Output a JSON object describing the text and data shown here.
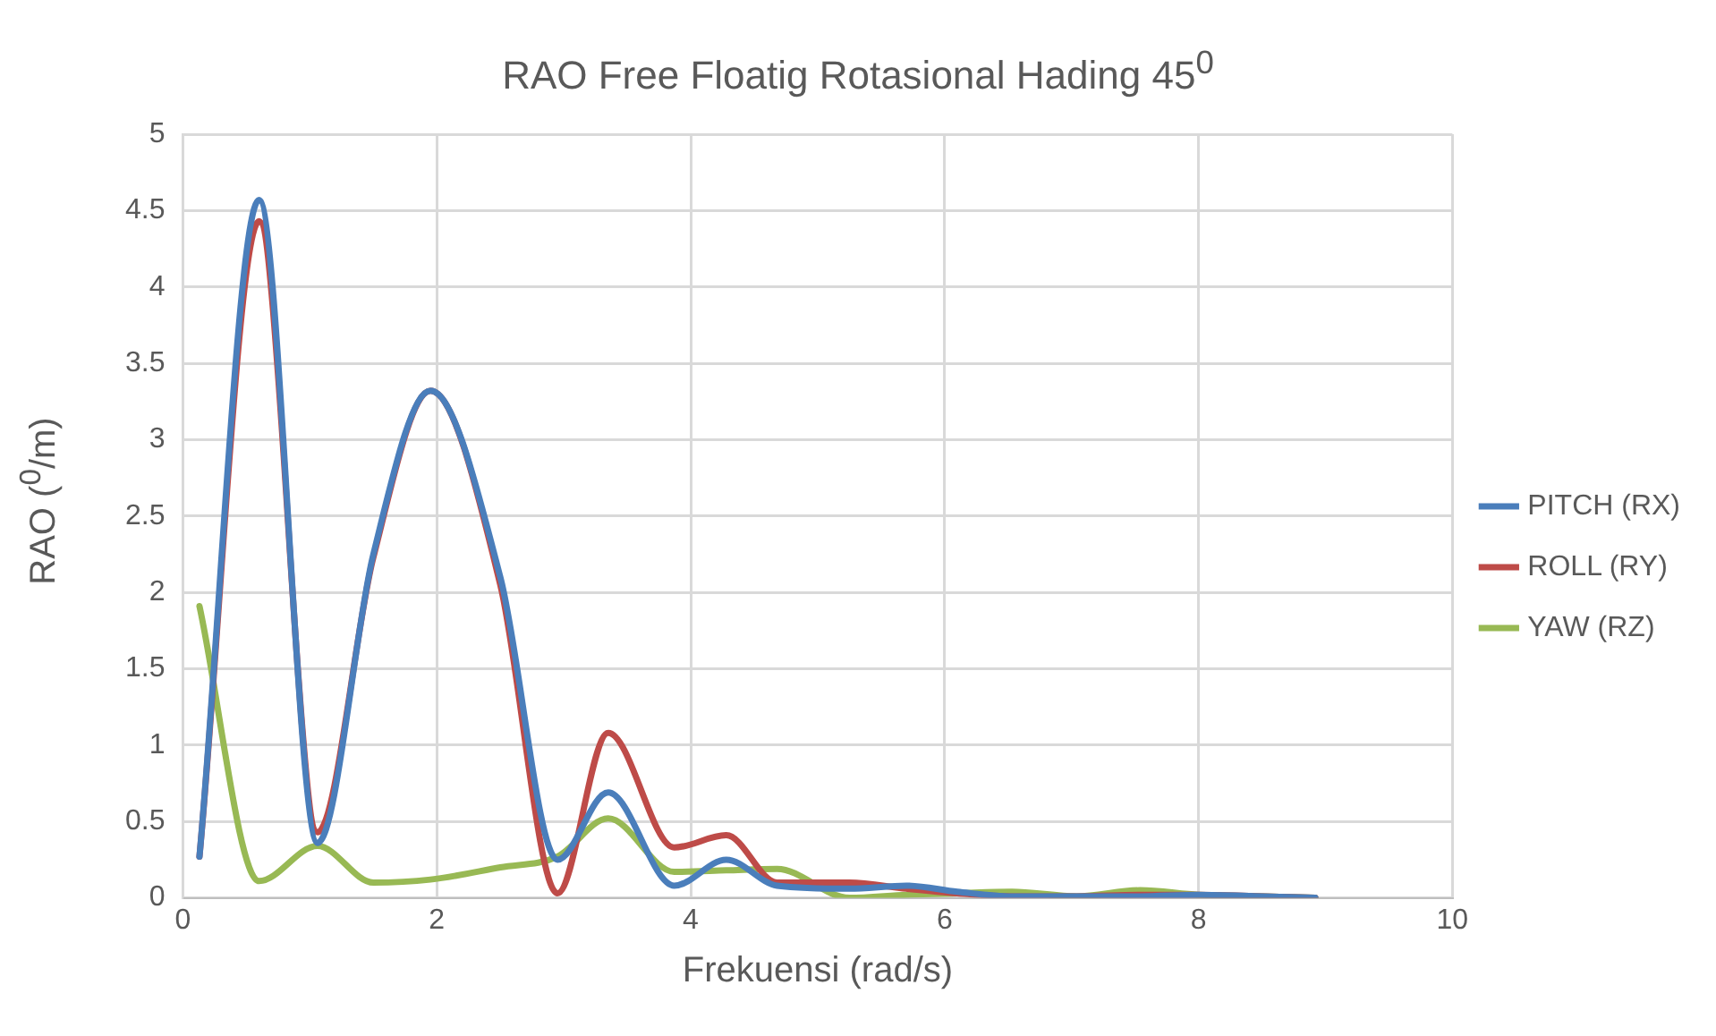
{
  "chart_data": {
    "type": "line",
    "title": "RAO Free Floatig Rotasional Hading 45$^{0}$",
    "xlabel": "Frekuensi (rad/s)",
    "ylabel": "RAO ($^{0}$/m)",
    "x": [
      0.13,
      0.6,
      1.06,
      1.5,
      1.95,
      2.5,
      2.95,
      3.35,
      3.87,
      4.28,
      4.68,
      5.25,
      5.7,
      6.1,
      6.53,
      7.04,
      7.54,
      8.0,
      8.5,
      8.92
    ],
    "series": [
      {
        "name": "PITCH (RX)",
        "color": "#4a7ebb",
        "values": [
          0.27,
          4.57,
          0.36,
          2.25,
          3.32,
          2.1,
          0.25,
          0.69,
          0.08,
          0.25,
          0.08,
          0.06,
          0.08,
          0.04,
          0.01,
          0.01,
          0.01,
          0.02,
          0.01,
          0
        ]
      },
      {
        "name": "ROLL (RY)",
        "color": "#be4b48",
        "values": [
          0.27,
          4.43,
          0.43,
          2.23,
          3.32,
          2.05,
          0.03,
          1.08,
          0.33,
          0.41,
          0.1,
          0.1,
          0.06,
          0.03,
          0.01,
          0.01,
          0.02,
          0.02,
          0.01,
          0
        ]
      },
      {
        "name": "YAW (RZ)",
        "color": "#98b954",
        "values": [
          1.91,
          0.11,
          0.34,
          0.1,
          0.12,
          0.2,
          0.27,
          0.52,
          0.17,
          0.18,
          0.19,
          0,
          0.02,
          0.03,
          0.04,
          0.01,
          0.05,
          0.02,
          0.01,
          0
        ]
      }
    ],
    "xlim": [
      0,
      10
    ],
    "xticks": [
      0,
      2,
      4,
      6,
      8,
      10
    ],
    "ylim": [
      0,
      5
    ],
    "yticks": [
      0,
      0.5,
      1,
      1.5,
      2,
      2.5,
      3,
      3.5,
      4,
      4.5,
      5
    ],
    "grid": true,
    "legend": "right",
    "marker": "none",
    "line_style": "solid"
  }
}
